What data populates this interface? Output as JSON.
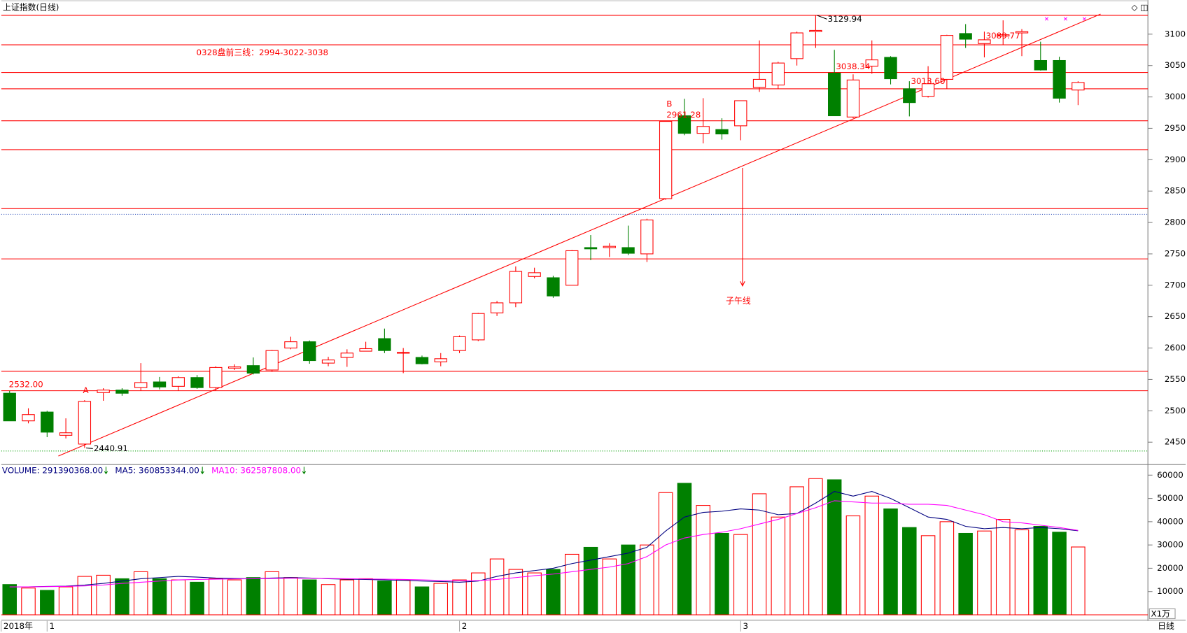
{
  "header": "上证指数(日线)",
  "period": "日线",
  "unit": "X1万",
  "point_labels": [
    "A",
    "B"
  ],
  "volume_header": [
    {
      "label": "VOLUME: 291390368.00",
      "color": "#000080"
    },
    {
      "label": "MA5: 360853344.00",
      "color": "#000080"
    },
    {
      "label": "MA10: 362587808.00",
      "color": "#ff00ff"
    }
  ],
  "chart_data": [
    {
      "type": "candlestick",
      "title": "0328盘前三线：2994-3022-3038",
      "up_color": "#ff0000",
      "down_color": "#008000",
      "open": [
        2528,
        2484,
        2498,
        2461,
        2447,
        2529,
        2533,
        2537,
        2546,
        2539,
        2553,
        2537,
        2568,
        2572,
        2565,
        2600,
        2610,
        2576,
        2585,
        2595,
        2615,
        2592,
        2585,
        2578,
        2596,
        2613,
        2656,
        2672,
        2714,
        2712,
        2700,
        2760,
        2760,
        2760,
        2750,
        2838,
        2970,
        2942,
        2948,
        2954,
        3015,
        3019,
        3061,
        3104,
        3038,
        2968,
        3049,
        3063,
        3013,
        3001,
        3028,
        3101,
        3085,
        3097,
        3102,
        3058,
        3058,
        3011
      ],
      "high": [
        2532,
        2504,
        2500,
        2488,
        2517,
        2536,
        2536,
        2576,
        2554,
        2555,
        2557,
        2571,
        2574,
        2585,
        2597,
        2618,
        2612,
        2586,
        2598,
        2610,
        2631,
        2600,
        2588,
        2592,
        2620,
        2656,
        2675,
        2730,
        2728,
        2715,
        2756,
        2780,
        2767,
        2795,
        2806,
        2961,
        2997,
        2998,
        2966,
        2994,
        3090,
        3056,
        3104,
        3129.94,
        3075,
        3036,
        3090,
        3065,
        3025,
        3049,
        3099,
        3116,
        3104,
        3122,
        3108,
        3088,
        3064,
        3025
      ],
      "low": [
        2484,
        2480,
        2458,
        2456,
        2440.91,
        2516,
        2524,
        2532,
        2534,
        2532,
        2535,
        2532,
        2565,
        2558,
        2562,
        2598,
        2575,
        2571,
        2570,
        2595,
        2592,
        2560,
        2574,
        2571,
        2592,
        2611,
        2651,
        2665,
        2711,
        2680,
        2700,
        2740,
        2745,
        2748,
        2737,
        2836,
        2939,
        2926,
        2932,
        2931,
        3008,
        3013,
        3050,
        3078,
        2970,
        2966,
        3037,
        3020,
        2969,
        2999,
        3013,
        3078,
        3063,
        3083,
        3065,
        3042,
        2991,
        2987
      ],
      "close": [
        2484,
        2494,
        2466,
        2465,
        2515,
        2533,
        2528,
        2545,
        2538,
        2553,
        2537,
        2569,
        2570,
        2560,
        2596,
        2610,
        2580,
        2581,
        2592,
        2599,
        2596,
        2593,
        2575,
        2583,
        2618,
        2655,
        2672,
        2722,
        2720,
        2683,
        2755,
        2758,
        2762,
        2751,
        2804,
        2961,
        2942,
        2953,
        2941,
        2994,
        3028,
        3054,
        3102,
        3106,
        2970,
        3027,
        3059,
        3029,
        2991,
        3021,
        3098,
        3092,
        3091,
        3099,
        3104,
        3043,
        2998,
        3023
      ],
      "ylim": [
        2418,
        3152
      ],
      "yticks": [
        2450,
        2500,
        2550,
        2600,
        2650,
        2700,
        2750,
        2800,
        2850,
        2900,
        2950,
        3000,
        3050,
        3100
      ],
      "xticks": [
        {
          "value": -0.45,
          "label": "2018年"
        },
        {
          "value": 2,
          "label": "1"
        },
        {
          "value": 24,
          "label": "2"
        },
        {
          "value": 39,
          "label": "3"
        }
      ],
      "hlines": [
        3130,
        3083,
        3039,
        3013,
        2962,
        2916,
        2822,
        2742,
        2563,
        2532
      ],
      "hline_color": "#ff0000",
      "dotted_lines": [
        {
          "value": 2813,
          "color": "#4060c0"
        },
        {
          "value": 2436,
          "color": "#00a000"
        }
      ],
      "trendline": {
        "x": [
          2.6,
          58.2
        ],
        "y": [
          2428,
          3132
        ],
        "color": "#ff0000"
      },
      "arrow": {
        "x": 39.1,
        "from": 2887,
        "to": 2699,
        "label": "子午线"
      },
      "annotations": [
        {
          "label": "2532.00",
          "x": 0,
          "value": 2532
        },
        {
          "label": "2440.91",
          "x": 4,
          "value": 2440.91
        },
        {
          "label": "2961.28",
          "x": 35,
          "value": 2961.28
        },
        {
          "label": "3129.94",
          "x": 43,
          "value": 3129.94
        },
        {
          "label": "3038.34",
          "x": 44,
          "value": 3038.34
        },
        {
          "label": "3013.60",
          "x": 48,
          "value": 3013.6
        },
        {
          "label": "3089.77",
          "x": 52,
          "value": 3089.77
        }
      ]
    },
    {
      "type": "volume",
      "ylim": [
        -1000,
        63900
      ],
      "yticks": [
        10000,
        20000,
        30000,
        40000,
        50000,
        60000
      ],
      "values": [
        13000,
        11500,
        10500,
        12000,
        16500,
        17000,
        15500,
        18500,
        15500,
        15000,
        14000,
        15500,
        15000,
        16000,
        18500,
        16000,
        15000,
        13000,
        15000,
        15500,
        14500,
        15000,
        12000,
        13500,
        15000,
        18000,
        24000,
        19500,
        18000,
        19500,
        26000,
        29000,
        24000,
        30000,
        30000,
        52500,
        56500,
        47000,
        35000,
        34500,
        52000,
        42000,
        55000,
        58500,
        58000,
        42500,
        51000,
        45500,
        37500,
        34000,
        40000,
        35000,
        36000,
        41000,
        36500,
        38000,
        35500,
        29139
      ],
      "series": [
        {
          "name": "MA5",
          "color": "#000080",
          "values": [
            12000,
            12000,
            12200,
            12300,
            12800,
            13500,
            14500,
            15500,
            16000,
            16500,
            16200,
            15800,
            15600,
            15500,
            15800,
            16000,
            15800,
            15500,
            15300,
            15200,
            15000,
            14800,
            14500,
            14300,
            14000,
            14500,
            16500,
            18000,
            19000,
            20000,
            22000,
            23500,
            25000,
            26500,
            29000,
            36000,
            42000,
            44000,
            44500,
            45500,
            45000,
            43000,
            43500,
            48000,
            53000,
            51000,
            53000,
            50000,
            46000,
            42000,
            41000,
            38000,
            37000,
            37500,
            37000,
            37500,
            37000,
            36085
          ]
        },
        {
          "name": "MA10",
          "color": "#ff00ff",
          "values": [
            12000,
            12000,
            12100,
            12200,
            12400,
            12800,
            13500,
            14000,
            14500,
            15000,
            15200,
            15300,
            15400,
            15500,
            15600,
            15700,
            15700,
            15600,
            15500,
            15400,
            15300,
            15200,
            15000,
            14800,
            14600,
            14700,
            15200,
            16000,
            16800,
            17500,
            18500,
            19500,
            20500,
            22000,
            25000,
            30000,
            33000,
            34500,
            35500,
            37000,
            39000,
            41000,
            43500,
            46000,
            49000,
            48500,
            48000,
            48000,
            47500,
            47500,
            47000,
            45000,
            43000,
            40000,
            39500,
            38500,
            37500,
            36259
          ]
        }
      ]
    }
  ]
}
